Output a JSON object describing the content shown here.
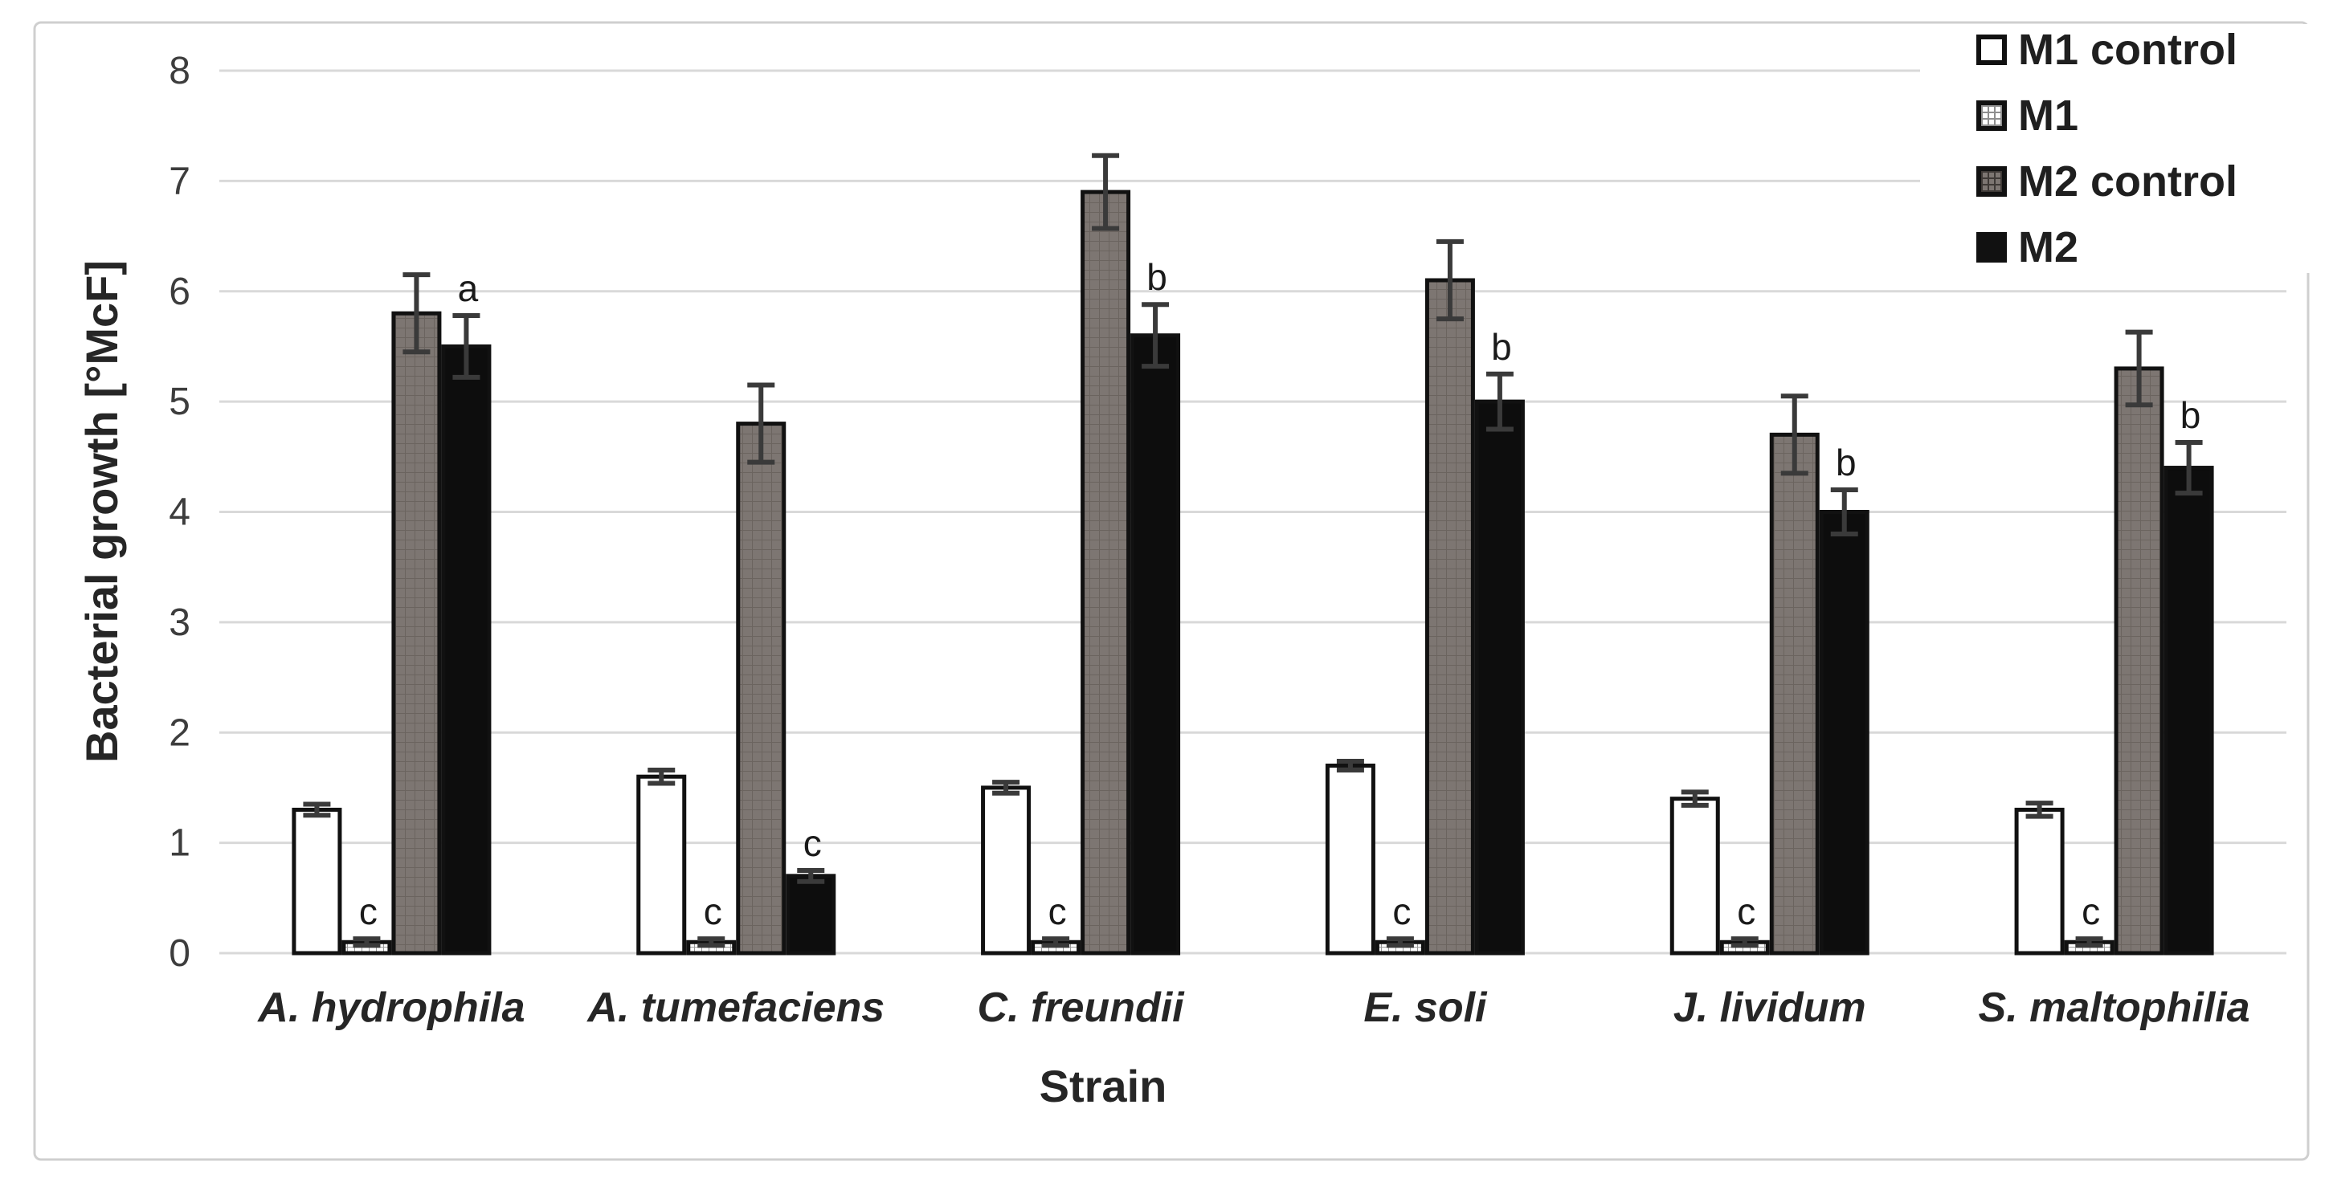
{
  "chart_data": {
    "type": "bar",
    "ylabel": "Bacterial growth [°McF]",
    "xlabel": "Strain",
    "ylim": [
      0,
      8
    ],
    "yticks": [
      0,
      1,
      2,
      3,
      4,
      5,
      6,
      7,
      8
    ],
    "grid": "horizontal-light-gray",
    "legend_position": "top-right",
    "categories": [
      "A. hydrophila",
      "A. tumefaciens",
      "C. freundii",
      "E. soli",
      "J. lividum",
      "S. maltophilia"
    ],
    "series": [
      {
        "name": "M1 control",
        "fill": "#ffffff",
        "pattern": "plain",
        "values": [
          1.3,
          1.6,
          1.5,
          1.7,
          1.4,
          1.3
        ],
        "errors": [
          0.05,
          0.06,
          0.05,
          0.04,
          0.06,
          0.06
        ],
        "letters": [
          "",
          "",
          "",
          "",
          "",
          ""
        ]
      },
      {
        "name": "M1",
        "fill": "#ffffff",
        "pattern": "grid",
        "values": [
          0.1,
          0.1,
          0.1,
          0.1,
          0.1,
          0.1
        ],
        "errors": [
          0.03,
          0.03,
          0.03,
          0.03,
          0.03,
          0.03
        ],
        "letters": [
          "c",
          "c",
          "c",
          "c",
          "c",
          "c"
        ]
      },
      {
        "name": "M2 control",
        "fill": "#7d7672",
        "pattern": "grid",
        "values": [
          5.8,
          4.8,
          6.9,
          6.1,
          4.7,
          5.3
        ],
        "errors": [
          0.35,
          0.35,
          0.33,
          0.35,
          0.35,
          0.33
        ],
        "letters": [
          "",
          "",
          "",
          "",
          "",
          ""
        ]
      },
      {
        "name": "M2",
        "fill": "#0d0d0d",
        "pattern": "solid",
        "values": [
          5.5,
          0.7,
          5.6,
          5.0,
          4.0,
          4.4
        ],
        "errors": [
          0.28,
          0.05,
          0.28,
          0.25,
          0.2,
          0.23
        ],
        "letters": [
          "a",
          "c",
          "b",
          "b",
          "b",
          "b"
        ]
      }
    ],
    "colors": {
      "gridline": "#d9d9d9",
      "frame": "#cfcfcf",
      "error_bar": "#3a3a3a",
      "bar_border": "#111111",
      "text": "#262626"
    }
  }
}
